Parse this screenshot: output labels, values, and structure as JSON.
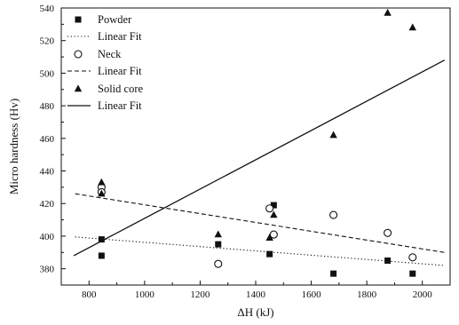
{
  "chart_data": {
    "type": "scatter",
    "xlabel": "ΔH (kJ)",
    "ylabel": "Micro hardness (Hv)",
    "xlim": [
      700,
      2100
    ],
    "ylim": [
      370,
      540
    ],
    "xticks": [
      800,
      1000,
      1200,
      1400,
      1600,
      1800,
      2000
    ],
    "yticks": [
      380,
      400,
      420,
      440,
      460,
      480,
      500,
      520,
      540
    ],
    "grid": false,
    "legend_position": "top-left",
    "series": [
      {
        "name": "Powder",
        "marker": "filled-square",
        "color": "#111111",
        "points": [
          [
            845,
            398
          ],
          [
            845,
            388
          ],
          [
            1265,
            395
          ],
          [
            1450,
            389
          ],
          [
            1465,
            419
          ],
          [
            1680,
            377
          ],
          [
            1875,
            385
          ],
          [
            1965,
            377
          ]
        ],
        "fit": {
          "name": "Linear Fit",
          "style": "dotted",
          "start": [
            750,
            399.5
          ],
          "end": [
            2080,
            382
          ]
        }
      },
      {
        "name": "Neck",
        "marker": "open-circle",
        "color": "#111111",
        "points": [
          [
            845,
            430
          ],
          [
            845,
            427
          ],
          [
            1265,
            383
          ],
          [
            1450,
            417
          ],
          [
            1465,
            401
          ],
          [
            1680,
            413
          ],
          [
            1875,
            402
          ],
          [
            1965,
            387
          ]
        ],
        "fit": {
          "name": "Linear Fit",
          "style": "dashed",
          "start": [
            750,
            426
          ],
          "end": [
            2080,
            390
          ]
        }
      },
      {
        "name": "Solid core",
        "marker": "filled-triangle",
        "color": "#111111",
        "points": [
          [
            845,
            433
          ],
          [
            845,
            426
          ],
          [
            1265,
            401
          ],
          [
            1450,
            399
          ],
          [
            1465,
            413
          ],
          [
            1680,
            462
          ],
          [
            1875,
            537
          ],
          [
            1965,
            528
          ]
        ],
        "fit": {
          "name": "Linear Fit",
          "style": "solid",
          "start": [
            745,
            388
          ],
          "end": [
            2080,
            508
          ]
        }
      }
    ]
  }
}
